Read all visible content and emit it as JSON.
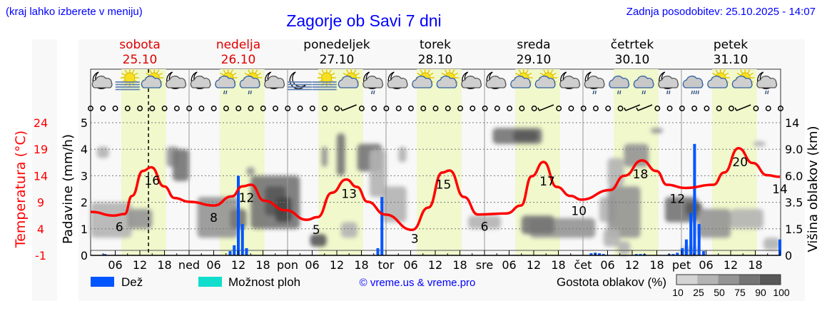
{
  "header": {
    "hint": "(kraj lahko izberete v meniju)",
    "title": "Zagorje ob Savi 7 dni",
    "updated": "Zadnja posodobitev: 25.10.2025 - 14:07"
  },
  "days": [
    {
      "name": "sobota",
      "date": "25.10",
      "color": "#e00000"
    },
    {
      "name": "nedelja",
      "date": "26.10",
      "color": "#e00000"
    },
    {
      "name": "ponedeljek",
      "date": "27.10",
      "color": "#000000"
    },
    {
      "name": "torek",
      "date": "28.10",
      "color": "#000000"
    },
    {
      "name": "sreda",
      "date": "29.10",
      "color": "#000000"
    },
    {
      "name": "četrtek",
      "date": "30.10",
      "color": "#000000"
    },
    {
      "name": "petek",
      "date": "31.10",
      "color": "#000000"
    }
  ],
  "icons": [
    "moon-cloud",
    "fog-sun",
    "sun-cloud",
    "moon-cloud",
    "moon-cloud",
    "sun-cloud-rain",
    "sun-cloud-rain",
    "moon-cloud",
    "moon-fog",
    "fog-sun",
    "sun-cloud",
    "moon-cloud-rain",
    "moon-cloud",
    "sun-cloud",
    "sun-cloud",
    "moon-cloud",
    "moon-cloud",
    "sun-cloud",
    "sun-cloud",
    "moon-cloud",
    "moon-cloud-rain",
    "cloud-rain",
    "cloud-rain",
    "moon-cloud-rain",
    "cloud-heavy-rain",
    "sun-cloud",
    "sun-cloud",
    "moon-cloud-rain"
  ],
  "wind_barbs_at": [
    21,
    37,
    44,
    45,
    53
  ],
  "legend": {
    "rain": "Dež",
    "showers": "Možnost ploh",
    "copyright": "© vreme.us & vreme.pro",
    "cloud_density": "Gostota oblakov (%)",
    "density_levels": [
      "10",
      "25",
      "50",
      "75",
      "90",
      "100"
    ]
  },
  "colors": {
    "rain": "#0055ff",
    "showers": "#11ddcc",
    "temperature": "#ff0000",
    "daylight": "#f0f8cc",
    "text_blue": "#0000ff"
  },
  "chart_data": {
    "type": "meteogram",
    "title": "Zagorje ob Savi 7 dni",
    "current_time_hour": 14.1,
    "x_ticks": [
      "06",
      "12",
      "18",
      "ned",
      "06",
      "12",
      "18",
      "pon",
      "06",
      "12",
      "18",
      "tor",
      "06",
      "12",
      "18",
      "sre",
      "06",
      "12",
      "18",
      "čet",
      "06",
      "12",
      "18",
      "pet",
      "06",
      "12",
      "18"
    ],
    "daylight_hours": [
      7.5,
      18.4
    ],
    "temperature_axis": {
      "label": "Temperatura (°C)",
      "ticks": [
        "24",
        "19",
        "14",
        "9",
        "4",
        "-1"
      ],
      "range": [
        -1,
        24
      ]
    },
    "precip_axis": {
      "label": "Padavine (mm/h)",
      "ticks": [
        "5",
        "4",
        "3",
        "2",
        "1",
        "0"
      ],
      "range": [
        0,
        5
      ]
    },
    "cloud_axis": {
      "label": "Višina oblakov (km)",
      "ticks": [
        "14",
        "9.0",
        "6.0",
        "3.5",
        "1.5",
        "0"
      ],
      "values": [
        14,
        9,
        6,
        3.5,
        1.5,
        0
      ]
    },
    "temperature": [
      [
        0,
        7.2
      ],
      [
        5.7,
        6.5
      ],
      [
        8.3,
        6.8
      ],
      [
        10.1,
        10.2
      ],
      [
        12.7,
        14.9
      ],
      [
        14.8,
        15.6
      ],
      [
        17.9,
        12.0
      ],
      [
        20.5,
        9.8
      ],
      [
        24,
        9.1
      ],
      [
        30.1,
        8.4
      ],
      [
        34.4,
        10.1
      ],
      [
        37,
        12.0
      ],
      [
        39.1,
        12.3
      ],
      [
        42.3,
        9.3
      ],
      [
        47.5,
        7.5
      ],
      [
        52.7,
        5.7
      ],
      [
        55.3,
        6.2
      ],
      [
        58.8,
        10.8
      ],
      [
        62.3,
        13.3
      ],
      [
        64.9,
        11.9
      ],
      [
        67.5,
        9.1
      ],
      [
        71.8,
        6.7
      ],
      [
        78.4,
        3.8
      ],
      [
        82.3,
        8.0
      ],
      [
        85.7,
        14.6
      ],
      [
        87.5,
        15.0
      ],
      [
        91,
        10.0
      ],
      [
        94.4,
        6.7
      ],
      [
        101.4,
        6.9
      ],
      [
        104.9,
        8.4
      ],
      [
        107.5,
        13.9
      ],
      [
        110.4,
        16.6
      ],
      [
        113.6,
        11.9
      ],
      [
        117,
        10.2
      ],
      [
        119.6,
        9.5
      ],
      [
        126.6,
        11.3
      ],
      [
        130.1,
        14.0
      ],
      [
        134.4,
        16.9
      ],
      [
        137.9,
        14.9
      ],
      [
        140.5,
        12.3
      ],
      [
        144.9,
        11.7
      ],
      [
        151.8,
        12.3
      ],
      [
        154.4,
        14.6
      ],
      [
        157.9,
        19.2
      ],
      [
        161.4,
        16.4
      ],
      [
        164.9,
        14.1
      ],
      [
        168,
        13.8
      ]
    ],
    "temperature_labels": [
      {
        "hour": 7,
        "text": "6"
      },
      {
        "hour": 15,
        "text": "16"
      },
      {
        "hour": 30,
        "text": "8"
      },
      {
        "hour": 38,
        "text": "12"
      },
      {
        "hour": 55,
        "text": "5"
      },
      {
        "hour": 63,
        "text": "13"
      },
      {
        "hour": 79,
        "text": "3"
      },
      {
        "hour": 86,
        "text": "15"
      },
      {
        "hour": 96,
        "text": "6"
      },
      {
        "hour": 111.3,
        "text": "17"
      },
      {
        "hour": 119,
        "text": "10"
      },
      {
        "hour": 134,
        "text": "18"
      },
      {
        "hour": 143,
        "text": "12"
      },
      {
        "hour": 158.3,
        "text": "20"
      },
      {
        "hour": 168,
        "text": "14"
      }
    ],
    "rain": [
      [
        3.5,
        0.05
      ],
      [
        34,
        0.16
      ],
      [
        35,
        0.38
      ],
      [
        36,
        3.0
      ],
      [
        37,
        1.18
      ],
      [
        38,
        0.27
      ],
      [
        70,
        0.27
      ],
      [
        71,
        2.2
      ],
      [
        122,
        0.08
      ],
      [
        123,
        0.1
      ],
      [
        124,
        0.08
      ],
      [
        125,
        0.05
      ],
      [
        133,
        0.05
      ],
      [
        134,
        0.05
      ],
      [
        135,
        0.05
      ],
      [
        141,
        0.05
      ],
      [
        142,
        0.05
      ],
      [
        143,
        0.1
      ],
      [
        144.2,
        0.27
      ],
      [
        145.2,
        0.6
      ],
      [
        146.3,
        1.6
      ],
      [
        147.2,
        4.2
      ],
      [
        148.3,
        1.18
      ],
      [
        149.4,
        0.16
      ],
      [
        168,
        0.6
      ]
    ],
    "cloud_blobs": [
      [
        5,
        10,
        1.0,
        3.5,
        25
      ],
      [
        12,
        6,
        1.5,
        3.0,
        50
      ],
      [
        3,
        3,
        8,
        9.5,
        25
      ],
      [
        20,
        3,
        7,
        9.5,
        50
      ],
      [
        22,
        4,
        5.5,
        9,
        75
      ],
      [
        31,
        10,
        1.0,
        4,
        50
      ],
      [
        36,
        4,
        1.5,
        3,
        75
      ],
      [
        45,
        12,
        1.5,
        6,
        75
      ],
      [
        45,
        5,
        2.5,
        5,
        90
      ],
      [
        47,
        4,
        2,
        4,
        100
      ],
      [
        39,
        2,
        6,
        7,
        50
      ],
      [
        55.5,
        4,
        0.5,
        1.2,
        90
      ],
      [
        57,
        1.5,
        7,
        9.5,
        50
      ],
      [
        61,
        2,
        6,
        12,
        75
      ],
      [
        68,
        6,
        6.5,
        10,
        75
      ],
      [
        63,
        4,
        1,
        2,
        25
      ],
      [
        74,
        6,
        2,
        5,
        25
      ],
      [
        70,
        4,
        4,
        9,
        25
      ],
      [
        76,
        2,
        7.5,
        9.5,
        25
      ],
      [
        96,
        8,
        1.5,
        2.5,
        25
      ],
      [
        104,
        12,
        10,
        13,
        75
      ],
      [
        106,
        6,
        10.5,
        12.5,
        90
      ],
      [
        115,
        16,
        1.0,
        2.3,
        50
      ],
      [
        109,
        8,
        1.2,
        2.5,
        75
      ],
      [
        126,
        4,
        2,
        4,
        25
      ],
      [
        128,
        4,
        5,
        8,
        25
      ],
      [
        130,
        8,
        1.0,
        5,
        50
      ],
      [
        133,
        6,
        7,
        10,
        50
      ],
      [
        138,
        3,
        12,
        13,
        50
      ],
      [
        127,
        4,
        0.5,
        1.5,
        25
      ],
      [
        144,
        8,
        2,
        4,
        75
      ],
      [
        147,
        4,
        2.5,
        3.5,
        90
      ],
      [
        152,
        8,
        1,
        3,
        50
      ],
      [
        160,
        8,
        1.5,
        3,
        25
      ],
      [
        166,
        4,
        0.3,
        1,
        25
      ],
      [
        130,
        3,
        0,
        0.8,
        25
      ],
      [
        146,
        4,
        0,
        0.5,
        25
      ],
      [
        163,
        3,
        9.5,
        10.5,
        25
      ]
    ]
  }
}
